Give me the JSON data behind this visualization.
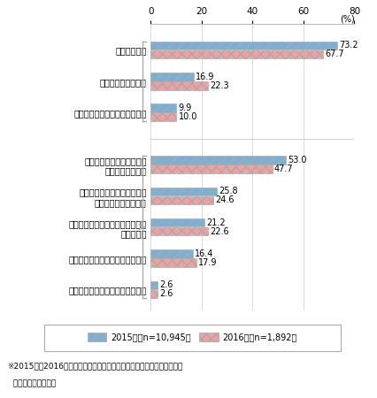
{
  "categories_group1": [
    "対策を行った",
    "対策を行っていない",
    "対策を行っているかわからない"
  ],
  "categories_group2": [
    "セキュリティ対策ソフトの\n導入もしくは更新",
    "セキュリティ対策サービスの\n新規契約もしくは更新",
    "不確かなインターネット回線には\n接続しない",
    "端末にパスワードを設定している",
    "管理者を定め、チェックしている"
  ],
  "values_2015_g1": [
    73.2,
    16.9,
    9.9
  ],
  "values_2016_g1": [
    67.7,
    22.3,
    10.0
  ],
  "values_2015_g2": [
    53.0,
    25.8,
    21.2,
    16.4,
    2.6
  ],
  "values_2016_g2": [
    47.7,
    24.6,
    22.6,
    17.9,
    2.6
  ],
  "color_2015": "#7bafd4",
  "color_2016": "#f0a0a0",
  "xlim": [
    0,
    80
  ],
  "xticks": [
    0,
    20,
    40,
    60,
    80
  ],
  "legend_2015": "2015年（n=10,945）",
  "legend_2016": "2016年（n=1,892）",
  "note_line1": "※2015年と2016年の調査では調査対象数が異なるため、結果の比較に際",
  "note_line2": "  しては注意が必要。",
  "bar_height": 0.32,
  "fig_width": 4.26,
  "fig_height": 4.5
}
